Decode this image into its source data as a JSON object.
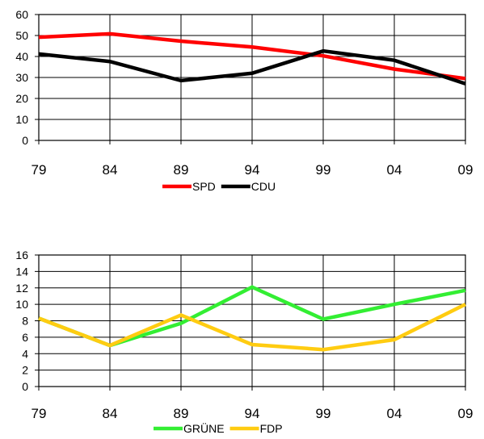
{
  "chart_data": [
    {
      "type": "line",
      "categories": [
        "79",
        "84",
        "89",
        "94",
        "99",
        "04",
        "09"
      ],
      "ylim": [
        0,
        60
      ],
      "yticks": [
        "0",
        "10",
        "20",
        "30",
        "40",
        "50",
        "60"
      ],
      "grid": true,
      "legend_position": "bottom",
      "series": [
        {
          "name": "SPD",
          "color": "#ff0000",
          "values": [
            49.2,
            50.8,
            47.3,
            44.5,
            40.3,
            34.0,
            29.5
          ]
        },
        {
          "name": "CDU",
          "color": "#000000",
          "values": [
            41.2,
            37.6,
            28.5,
            32.0,
            42.6,
            38.2,
            27.0
          ]
        }
      ]
    },
    {
      "type": "line",
      "categories": [
        "79",
        "84",
        "89",
        "94",
        "99",
        "04",
        "09"
      ],
      "ylim": [
        0,
        16
      ],
      "yticks": [
        "0",
        "2",
        "4",
        "6",
        "8",
        "10",
        "12",
        "14",
        "16"
      ],
      "grid": true,
      "legend_position": "bottom",
      "series": [
        {
          "name": "GRÜNE",
          "color": "#33ee33",
          "values": [
            8.3,
            5.0,
            7.7,
            12.1,
            8.2,
            10.0,
            11.7
          ]
        },
        {
          "name": "FDP",
          "color": "#ffcc11",
          "values": [
            8.3,
            5.0,
            8.7,
            5.1,
            4.5,
            5.7,
            10.0
          ]
        }
      ]
    }
  ]
}
